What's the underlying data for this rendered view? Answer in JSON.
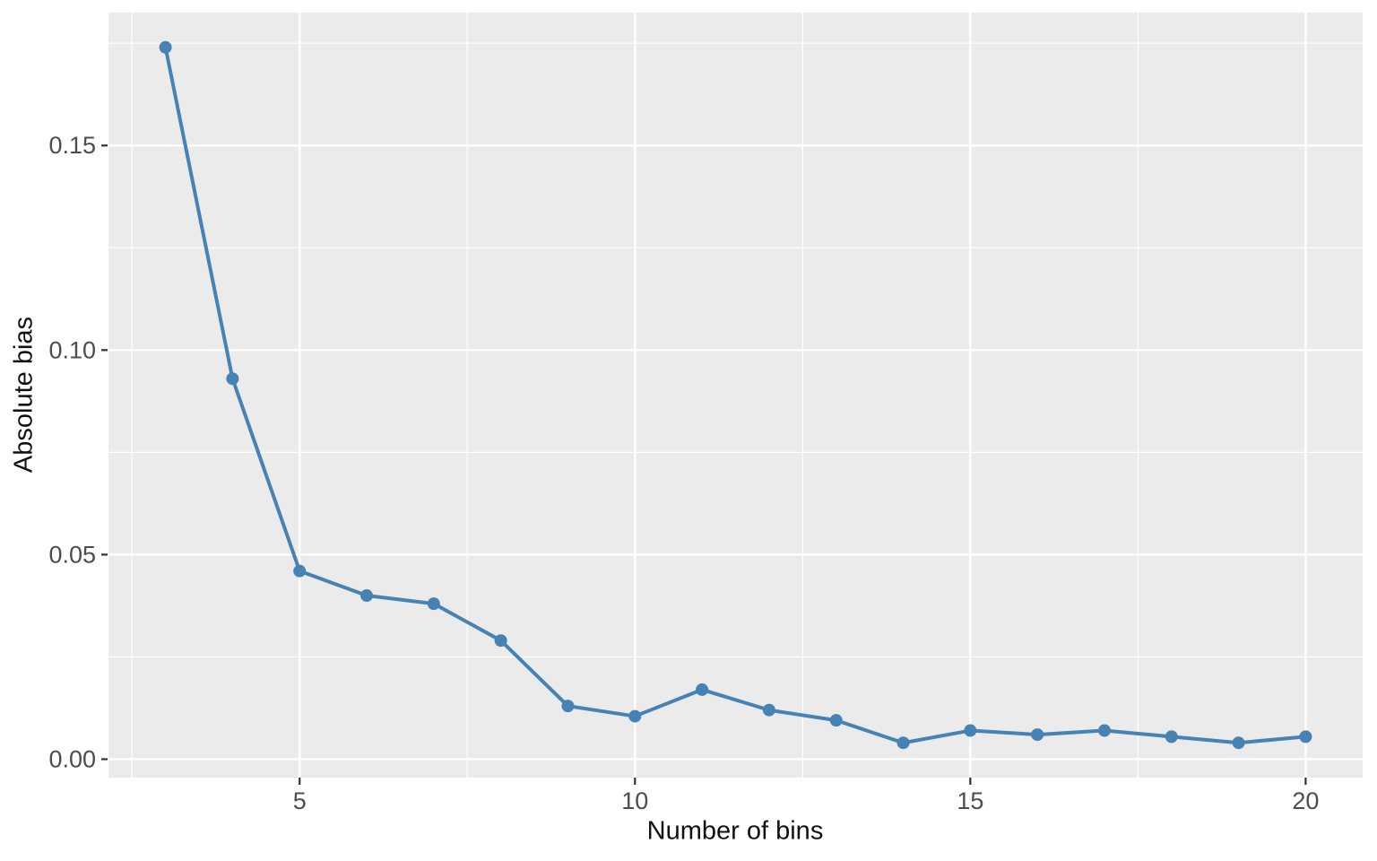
{
  "chart_data": {
    "type": "line",
    "title": "",
    "xlabel": "Number of bins",
    "ylabel": "Absolute bias",
    "x": [
      3,
      4,
      5,
      6,
      7,
      8,
      9,
      10,
      11,
      12,
      13,
      14,
      15,
      16,
      17,
      18,
      19,
      20
    ],
    "values": [
      0.174,
      0.093,
      0.046,
      0.04,
      0.038,
      0.029,
      0.013,
      0.0105,
      0.017,
      0.012,
      0.0095,
      0.004,
      0.007,
      0.006,
      0.007,
      0.0055,
      0.004,
      0.0055
    ],
    "series_name": "absolute-bias",
    "x_ticks": {
      "values": [
        5,
        10,
        15,
        20
      ],
      "labels": [
        "5",
        "10",
        "15",
        "20"
      ]
    },
    "y_ticks": {
      "values": [
        0.0,
        0.05,
        0.1,
        0.15
      ],
      "labels": [
        "0.00",
        "0.05",
        "0.10",
        "0.15"
      ]
    },
    "x_minor_ticks": [
      2.5,
      7.5,
      12.5,
      17.5
    ],
    "y_minor_ticks": [
      0.025,
      0.075,
      0.125,
      0.175
    ],
    "xlim": [
      2.15,
      20.85
    ],
    "ylim": [
      -0.0045,
      0.1825
    ],
    "grid": "major-and-minor",
    "legend": "none",
    "colors": {
      "line": "#4682B4",
      "point": "#4682B4",
      "panel_background": "#EBEBEB",
      "gridline": "#FFFFFF",
      "tick_mark": "#333333",
      "tick_label": "#4d4d4d",
      "axis_title": "#111111",
      "figure_background": "#FFFFFF"
    }
  }
}
